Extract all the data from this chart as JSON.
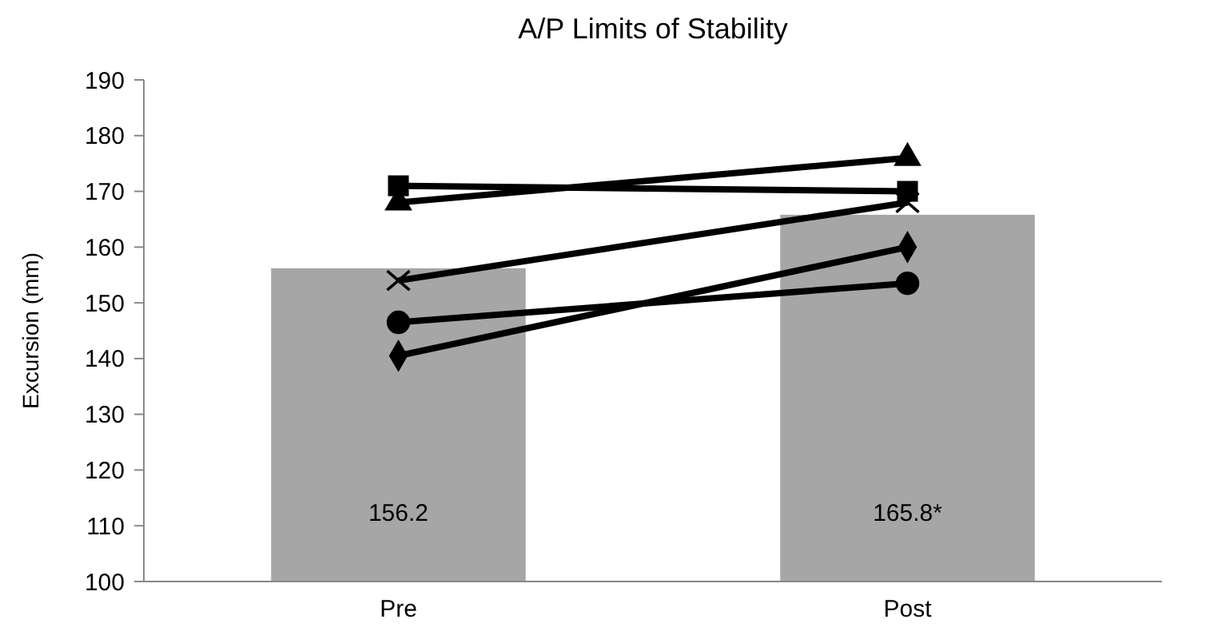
{
  "chart_data": {
    "type": "bar",
    "title": "A/P Limits of Stability",
    "ylabel": "Excursion (mm)",
    "categories": [
      "Pre",
      "Post"
    ],
    "ylim": [
      100,
      190
    ],
    "yticks": [
      100,
      110,
      120,
      130,
      140,
      150,
      160,
      170,
      180,
      190
    ],
    "grid": false,
    "series": [
      {
        "color": "#a6a6a6",
        "values": [
          156.2,
          165.8
        ],
        "value_labels": [
          "156.2",
          "165.8*"
        ]
      },
      {
        "type": "line",
        "color": "#000000",
        "marker": "square",
        "values": [
          171,
          170
        ]
      },
      {
        "type": "line",
        "color": "#000000",
        "marker": "triangle",
        "values": [
          168,
          176
        ]
      },
      {
        "type": "line",
        "color": "#000000",
        "marker": "cross",
        "values": [
          154,
          168
        ]
      },
      {
        "type": "line",
        "color": "#000000",
        "marker": "circle",
        "values": [
          146.5,
          153.5
        ]
      },
      {
        "type": "line",
        "color": "#000000",
        "marker": "diamond",
        "values": [
          140.5,
          160
        ]
      }
    ]
  }
}
